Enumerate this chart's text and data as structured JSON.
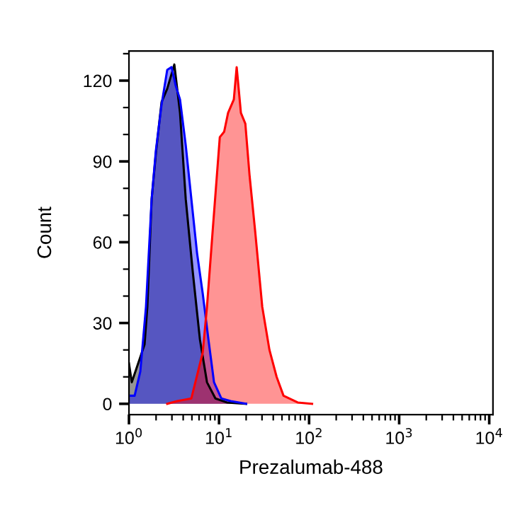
{
  "chart_data": {
    "type": "area",
    "xlabel": "Prezalumab-488",
    "ylabel": "Count",
    "log": "x",
    "xlim": [
      1,
      11000
    ],
    "xticks": [
      {
        "value": 1,
        "label": "10$^{0}$"
      },
      {
        "value": 10,
        "label": "10$^{1}$"
      },
      {
        "value": 100,
        "label": "10$^{2}$"
      },
      {
        "value": 1000,
        "label": "10$^{3}$"
      },
      {
        "value": 10000,
        "label": "10$^{4}$"
      }
    ],
    "ylim": [
      -4,
      131
    ],
    "yticks": [
      0,
      30,
      60,
      90,
      120
    ],
    "grid": false,
    "series": [
      {
        "color": "#000000",
        "x": [
          1.0,
          1.075,
          1.49,
          1.6,
          1.786,
          1.99,
          2.3,
          2.66,
          3.19,
          3.69,
          4.27,
          5.11,
          6.13,
          7.35,
          9.12,
          12.2,
          20
        ],
        "values": [
          15,
          8,
          22,
          36,
          76,
          93,
          112,
          117,
          126,
          108,
          76,
          49,
          24,
          8,
          2,
          0.5,
          0
        ]
      },
      {
        "color": "#0000ff",
        "x": [
          1.0,
          1.156,
          1.337,
          1.545,
          1.786,
          1.99,
          2.3,
          2.66,
          2.97,
          3.31,
          3.69,
          4.27,
          4.93,
          5.7,
          6.59,
          7.62,
          8.8,
          10.6,
          13.5,
          20
        ],
        "values": [
          3,
          3,
          12,
          36,
          76,
          94,
          111,
          124,
          125,
          118,
          113,
          96,
          76,
          56,
          41,
          24,
          8,
          2,
          1,
          0
        ]
      },
      {
        "color": "#ff0000",
        "x": [
          2.66,
          3.43,
          4.93,
          6.59,
          7.35,
          8.49,
          10.2,
          11.4,
          12.6,
          14.6,
          15.7,
          17.5,
          19.6,
          21.8,
          25.2,
          30.2,
          36.3,
          43.6,
          52.0,
          74.8,
          108
        ],
        "values": [
          0,
          1,
          2,
          19,
          36,
          64,
          99,
          101,
          108,
          113,
          125,
          108,
          104,
          85,
          64,
          36,
          20,
          10,
          3,
          0.5,
          0
        ]
      }
    ]
  }
}
